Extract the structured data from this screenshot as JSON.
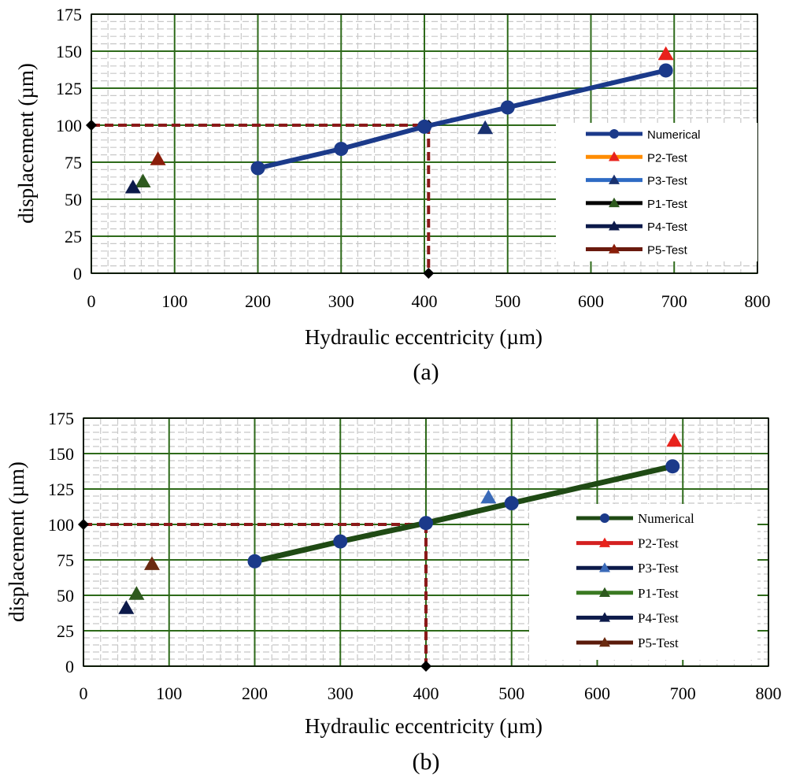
{
  "chart_data": [
    {
      "type": "line",
      "caption": "(a)",
      "xlabel": "Hydraulic eccentricity (µm)",
      "ylabel": "displacement (µm)",
      "xlim": [
        0,
        800
      ],
      "ylim": [
        0,
        175
      ],
      "xticks": [
        0,
        100,
        200,
        300,
        400,
        500,
        600,
        700,
        800
      ],
      "yticks": [
        0,
        25,
        50,
        75,
        100,
        125,
        150,
        175
      ],
      "grid": true,
      "legend_position": "right",
      "line_color": "#1b3a8a",
      "series": [
        {
          "name": "Numerical",
          "kind": "line-marker",
          "color": "#1b3a8a",
          "points": [
            [
              200,
              71
            ],
            [
              300,
              84
            ],
            [
              400,
              99
            ],
            [
              500,
              112
            ],
            [
              690,
              137
            ]
          ]
        },
        {
          "name": "P2-Test",
          "kind": "triangle",
          "color": "#e8221c",
          "legend_line_color": "#ff8c00",
          "points": [
            [
              690,
              148
            ]
          ]
        },
        {
          "name": "P3-Test",
          "kind": "triangle",
          "color": "#1a3270",
          "legend_line_color": "#2e6bc4",
          "points": [
            [
              473,
              98
            ]
          ]
        },
        {
          "name": "P1-Test",
          "kind": "triangle",
          "color": "#2e5a1e",
          "legend_line_color": "#000000",
          "points": [
            [
              62,
              62
            ]
          ]
        },
        {
          "name": "P4-Test",
          "kind": "triangle",
          "color": "#0c1a4a",
          "legend_line_color": "#0c1a4a",
          "points": [
            [
              50,
              58
            ]
          ]
        },
        {
          "name": "P5-Test",
          "kind": "triangle",
          "color": "#8a1e0a",
          "legend_line_color": "#6a1a0e",
          "points": [
            [
              80,
              77
            ]
          ]
        }
      ],
      "guide": {
        "horizontal": [
          [
            0,
            100
          ],
          [
            405,
            100
          ]
        ],
        "vertical": [
          [
            405,
            100
          ],
          [
            405,
            0
          ]
        ],
        "color": "#8b1a1a"
      }
    },
    {
      "type": "line",
      "caption": "(b)",
      "xlabel": "Hydraulic eccentricity (µm)",
      "ylabel": "displacement (µm)",
      "xlim": [
        0,
        800
      ],
      "ylim": [
        0,
        175
      ],
      "xticks": [
        0,
        100,
        200,
        300,
        400,
        500,
        600,
        700,
        800
      ],
      "yticks": [
        0,
        25,
        50,
        75,
        100,
        125,
        150,
        175
      ],
      "grid": true,
      "legend_position": "right",
      "line_color": "#1f4a14",
      "series": [
        {
          "name": "Numerical",
          "kind": "line-marker",
          "color": "#1b3a8a",
          "points": [
            [
              200,
              74
            ],
            [
              300,
              88
            ],
            [
              400,
              101
            ],
            [
              500,
              115
            ],
            [
              688,
              141
            ]
          ]
        },
        {
          "name": "P2-Test",
          "kind": "triangle",
          "color": "#e8221c",
          "legend_line_color": "#d42020",
          "points": [
            [
              690,
              159
            ]
          ]
        },
        {
          "name": "P3-Test",
          "kind": "triangle",
          "color": "#3a6ab8",
          "legend_line_color": "#0c1a4a",
          "points": [
            [
              473,
              119
            ]
          ]
        },
        {
          "name": "P1-Test",
          "kind": "triangle",
          "color": "#2e5a1e",
          "legend_line_color": "#3a7a22",
          "points": [
            [
              62,
              51
            ]
          ]
        },
        {
          "name": "P4-Test",
          "kind": "triangle",
          "color": "#0c1a4a",
          "legend_line_color": "#0c1a4a",
          "points": [
            [
              50,
              41
            ]
          ]
        },
        {
          "name": "P5-Test",
          "kind": "triangle",
          "color": "#6a2a10",
          "legend_line_color": "#5a1a0a",
          "points": [
            [
              80,
              72
            ]
          ]
        }
      ],
      "guide": {
        "horizontal": [
          [
            0,
            100
          ],
          [
            400,
            100
          ]
        ],
        "vertical": [
          [
            400,
            100
          ],
          [
            400,
            0
          ]
        ],
        "color": "#8b1a1a"
      }
    }
  ]
}
